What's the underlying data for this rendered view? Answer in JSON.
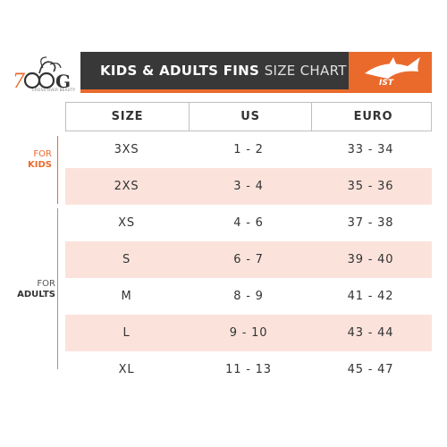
{
  "header": {
    "title_bold": "KIDS & ADULTS FINS",
    "title_thin": "SIZE CHART",
    "brand_logo_text": "IST",
    "brand_logo_sub": "CROSS OVER BEAUTY"
  },
  "side_labels": {
    "kids": {
      "sub": "FOR",
      "main": "KIDS"
    },
    "adults": {
      "sub": "FOR",
      "main": "ADULTS"
    }
  },
  "table": {
    "headers": [
      "SIZE",
      "US",
      "EURO"
    ],
    "rows": [
      [
        "3XS",
        "1 - 2",
        "33 - 34"
      ],
      [
        "2XS",
        "3 - 4",
        "35 - 36"
      ],
      [
        "XS",
        "4 - 6",
        "37 - 38"
      ],
      [
        "S",
        "6 - 7",
        "39 - 40"
      ],
      [
        "M",
        "8 - 9",
        "41 - 42"
      ],
      [
        "L",
        "9 - 10",
        "43 - 44"
      ],
      [
        "XL",
        "11 - 13",
        "45 - 47"
      ]
    ]
  },
  "colors": {
    "accent": "#ea6a2c",
    "header_bar": "#383838",
    "row_highlight": "#fbe3dc"
  }
}
